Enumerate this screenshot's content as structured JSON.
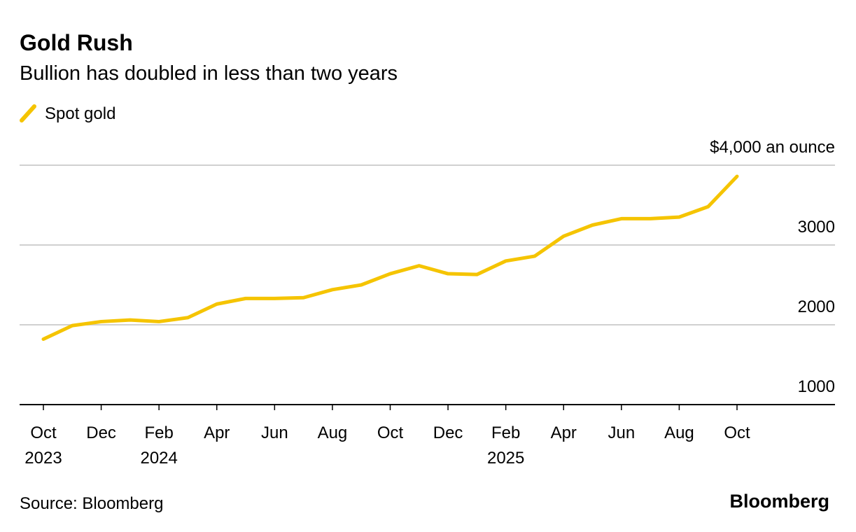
{
  "chart_data": {
    "type": "line",
    "title": "Gold Rush",
    "subtitle": "Bullion has doubled in less than two years",
    "x": [
      "2023-10",
      "2023-11",
      "2023-12",
      "2024-01",
      "2024-02",
      "2024-03",
      "2024-04",
      "2024-05",
      "2024-06",
      "2024-07",
      "2024-08",
      "2024-09",
      "2024-10",
      "2024-11",
      "2024-12",
      "2025-01",
      "2025-02",
      "2025-03",
      "2025-04",
      "2025-05",
      "2025-06",
      "2025-07",
      "2025-08",
      "2025-09",
      "2025-10"
    ],
    "series": [
      {
        "name": "Spot gold",
        "color": "#f5c400",
        "values": [
          1820,
          1990,
          2040,
          2060,
          2040,
          2090,
          2260,
          2330,
          2330,
          2340,
          2440,
          2500,
          2640,
          2740,
          2640,
          2630,
          2800,
          2860,
          3110,
          3250,
          3330,
          3330,
          3350,
          3480,
          3860
        ]
      }
    ],
    "ylim": [
      1000,
      4000
    ],
    "yticks": [
      1000,
      2000,
      3000,
      {
        "value": 4000,
        "label": "$4,000 an ounce"
      }
    ],
    "xticks": [
      {
        "value": "2023-10",
        "label": "Oct 2023"
      },
      {
        "value": "2023-12",
        "label": "Dec"
      },
      {
        "value": "2024-02",
        "label": "Feb 2024"
      },
      {
        "value": "2024-04",
        "label": "Apr"
      },
      {
        "value": "2024-06",
        "label": "Jun"
      },
      {
        "value": "2024-08",
        "label": "Aug"
      },
      {
        "value": "2024-10",
        "label": "Oct"
      },
      {
        "value": "2024-12",
        "label": "Dec"
      },
      {
        "value": "2025-02",
        "label": "Feb 2025"
      },
      {
        "value": "2025-04",
        "label": "Apr"
      },
      {
        "value": "2025-06",
        "label": "Jun"
      },
      {
        "value": "2025-08",
        "label": "Aug"
      },
      {
        "value": "2025-10",
        "label": "Oct"
      }
    ],
    "grid": true,
    "source": "Source: Bloomberg",
    "brand": "Bloomberg"
  }
}
